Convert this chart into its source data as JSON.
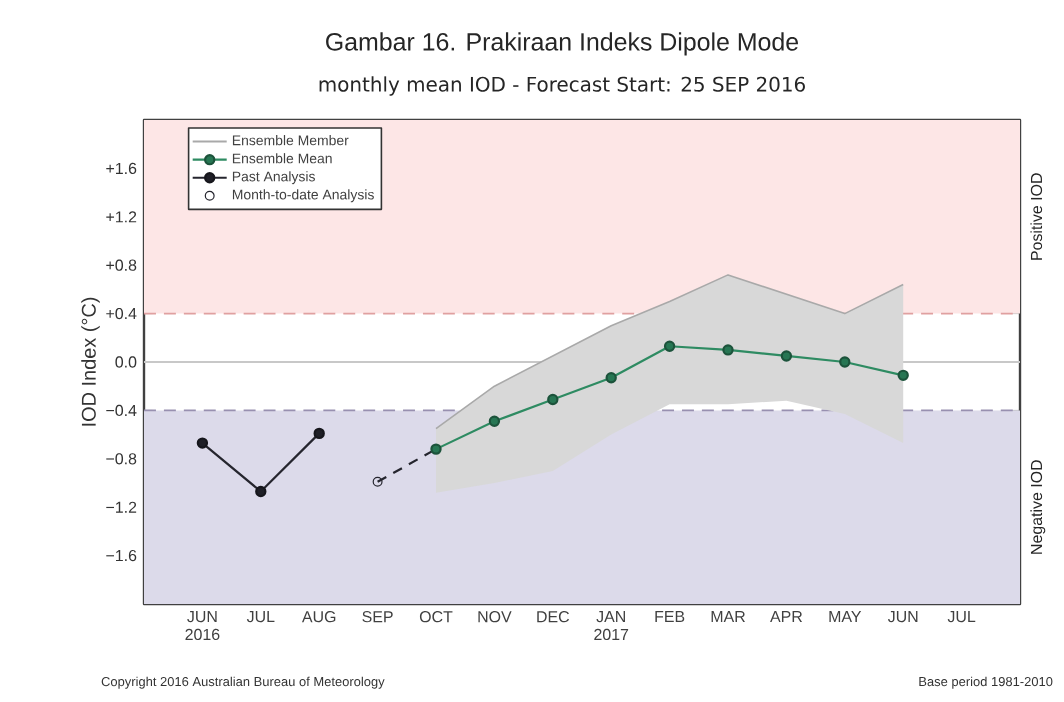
{
  "chart_data": {
    "type": "line",
    "title": "Gambar 16. Prakiraan Indeks Dipole Mode",
    "subtitle": "monthly mean IOD - Forecast Start: 25 SEP 2016",
    "ylabel": "IOD Index (°C)",
    "categories": [
      "JUN 2016",
      "JUL",
      "AUG",
      "SEP",
      "OCT",
      "NOV",
      "DEC",
      "JAN 2017",
      "FEB",
      "MAR",
      "APR",
      "MAY",
      "JUN",
      "JUL"
    ],
    "ylim": [
      -2.0,
      2.0
    ],
    "yticks": [
      {
        "value": -1.6,
        "label": "−1.6"
      },
      {
        "value": -1.2,
        "label": "−1.2"
      },
      {
        "value": -0.8,
        "label": "−0.8"
      },
      {
        "value": -0.4,
        "label": "−0.4"
      },
      {
        "value": 0.0,
        "label": "0.0"
      },
      {
        "value": 0.4,
        "label": "+0.4"
      },
      {
        "value": 0.8,
        "label": "+0.8"
      },
      {
        "value": 1.2,
        "label": "+1.2"
      },
      {
        "value": 1.6,
        "label": "+1.6"
      }
    ],
    "series": [
      {
        "name": "Ensemble Member",
        "color": "#a9a9a9",
        "values": [
          null,
          null,
          null,
          null,
          -0.55,
          -0.2,
          0.05,
          0.3,
          0.5,
          0.72,
          0.56,
          0.4,
          0.64,
          null
        ],
        "lower": [
          null,
          null,
          null,
          null,
          -1.08,
          -1.0,
          -0.9,
          -0.6,
          -0.35,
          -0.35,
          -0.32,
          -0.43,
          -0.67,
          null
        ],
        "upper": [
          null,
          null,
          null,
          null,
          -0.55,
          -0.2,
          0.05,
          0.3,
          0.5,
          0.72,
          0.56,
          0.4,
          0.64,
          null
        ]
      },
      {
        "name": "Ensemble Mean",
        "color": "#2e8b62",
        "marker": "circle",
        "values": [
          null,
          null,
          null,
          null,
          -0.72,
          -0.49,
          -0.31,
          -0.13,
          0.13,
          0.1,
          0.05,
          0.0,
          -0.11,
          null
        ]
      },
      {
        "name": "Past Analysis",
        "color": "#25252e",
        "marker": "circle",
        "values": [
          -0.67,
          -1.07,
          -0.59,
          null,
          null,
          null,
          null,
          null,
          null,
          null,
          null,
          null,
          null,
          null
        ]
      },
      {
        "color": "#25252e",
        "line_style": "dashed",
        "values": [
          null,
          null,
          null,
          -0.99,
          -0.72,
          null,
          null,
          null,
          null,
          null,
          null,
          null,
          null,
          null
        ]
      },
      {
        "name": "Month-to-date Analysis",
        "type": "scatter",
        "color": "#25252e",
        "marker": "circle",
        "values": [
          null,
          null,
          null,
          -0.99,
          null,
          null,
          null,
          null,
          null,
          null,
          null,
          null,
          null,
          null
        ]
      }
    ],
    "bands": [
      {
        "axis": "y",
        "from": 0.4,
        "to": 2.0,
        "color": "#fde6e6"
      },
      {
        "axis": "y",
        "from": -2.0,
        "to": -0.4,
        "color": "#dcdaea"
      }
    ],
    "ref_lines": [
      {
        "axis": "y",
        "value": 0.4,
        "color": "#e0a0a0",
        "line_style": "dashed"
      },
      {
        "axis": "y",
        "value": -0.4,
        "color": "#9890b0",
        "line_style": "dashed"
      },
      {
        "axis": "y",
        "value": 0.0,
        "color": "#c8c8c8",
        "line_style": "solid"
      }
    ],
    "annotations": [
      "Positive IOD",
      "Negative IOD",
      "Copyright 2016 Australian Bureau of Meteorology",
      "Base period 1981-2010"
    ],
    "legend": "top left",
    "grid": false
  }
}
